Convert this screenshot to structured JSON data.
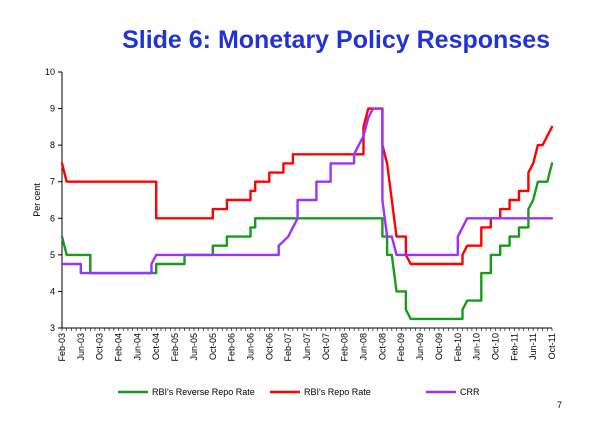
{
  "slide": {
    "title": "Slide 6: Monetary Policy Responses",
    "number": "7"
  },
  "colors": {
    "title": "#2233d6",
    "reverse_repo": "#1a9a1a",
    "repo": "#ff0000",
    "crr": "#9933ff"
  },
  "chart_data": {
    "type": "line",
    "title": "",
    "xlabel": "",
    "ylabel": "Per cent",
    "ylim": [
      3,
      10
    ],
    "yticks": [
      3,
      4,
      5,
      6,
      7,
      8,
      9,
      10
    ],
    "grid": false,
    "legend_position": "bottom",
    "x_start_label": "Feb-03",
    "x_end_label": "Oct-11",
    "xtick_labels": [
      "Feb-03",
      "Jun-03",
      "Oct-03",
      "Feb-04",
      "Jun-04",
      "Oct-04",
      "Feb-05",
      "Jun-05",
      "Oct-05",
      "Feb-06",
      "Jun-06",
      "Oct-06",
      "Feb-07",
      "Jun-07",
      "Oct-07",
      "Feb-08",
      "Jun-08",
      "Oct-08",
      "Feb-09",
      "Jun-09",
      "Oct-09",
      "Feb-10",
      "Jun-10",
      "Oct-10",
      "Feb-11",
      "Jun-11",
      "Oct-11"
    ],
    "series": [
      {
        "name": "RBI's Reverse Repo Rate",
        "color": "#1a9a1a",
        "points": [
          [
            "Feb-03",
            5.5
          ],
          [
            "Mar-03",
            5.0
          ],
          [
            "Jun-03",
            5.0
          ],
          [
            "Aug-03",
            5.0
          ],
          [
            "Aug-03",
            4.5
          ],
          [
            "Oct-04",
            4.5
          ],
          [
            "Oct-04",
            4.75
          ],
          [
            "Apr-05",
            4.75
          ],
          [
            "Apr-05",
            5.0
          ],
          [
            "Oct-05",
            5.0
          ],
          [
            "Oct-05",
            5.25
          ],
          [
            "Jan-06",
            5.25
          ],
          [
            "Jan-06",
            5.5
          ],
          [
            "Jun-06",
            5.5
          ],
          [
            "Jun-06",
            5.75
          ],
          [
            "Jul-06",
            5.75
          ],
          [
            "Jul-06",
            6.0
          ],
          [
            "Oct-08",
            6.0
          ],
          [
            "Oct-08",
            5.5
          ],
          [
            "Nov-08",
            5.5
          ],
          [
            "Nov-08",
            5.0
          ],
          [
            "Dec-08",
            5.0
          ],
          [
            "Jan-09",
            4.0
          ],
          [
            "Mar-09",
            4.0
          ],
          [
            "Mar-09",
            3.5
          ],
          [
            "Apr-09",
            3.25
          ],
          [
            "Mar-10",
            3.25
          ],
          [
            "Mar-10",
            3.5
          ],
          [
            "Apr-10",
            3.75
          ],
          [
            "Jul-10",
            3.75
          ],
          [
            "Jul-10",
            4.0
          ],
          [
            "Jul-10",
            4.5
          ],
          [
            "Sep-10",
            4.5
          ],
          [
            "Sep-10",
            5.0
          ],
          [
            "Nov-10",
            5.0
          ],
          [
            "Nov-10",
            5.25
          ],
          [
            "Jan-11",
            5.25
          ],
          [
            "Jan-11",
            5.5
          ],
          [
            "Mar-11",
            5.5
          ],
          [
            "Mar-11",
            5.75
          ],
          [
            "May-11",
            5.75
          ],
          [
            "May-11",
            6.25
          ],
          [
            "Jun-11",
            6.5
          ],
          [
            "Jul-11",
            7.0
          ],
          [
            "Sep-11",
            7.0
          ],
          [
            "Oct-11",
            7.5
          ]
        ]
      },
      {
        "name": "RBI's Repo Rate",
        "color": "#ff0000",
        "points": [
          [
            "Feb-03",
            7.5
          ],
          [
            "Mar-03",
            7.0
          ],
          [
            "Mar-04",
            7.0
          ],
          [
            "Oct-04",
            7.0
          ],
          [
            "Oct-04",
            6.0
          ],
          [
            "Oct-05",
            6.0
          ],
          [
            "Oct-05",
            6.25
          ],
          [
            "Jan-06",
            6.25
          ],
          [
            "Jan-06",
            6.5
          ],
          [
            "Jun-06",
            6.5
          ],
          [
            "Jun-06",
            6.75
          ],
          [
            "Jul-06",
            6.75
          ],
          [
            "Jul-06",
            7.0
          ],
          [
            "Oct-06",
            7.0
          ],
          [
            "Oct-06",
            7.25
          ],
          [
            "Jan-07",
            7.25
          ],
          [
            "Jan-07",
            7.5
          ],
          [
            "Mar-07",
            7.5
          ],
          [
            "Mar-07",
            7.75
          ],
          [
            "Jun-08",
            7.75
          ],
          [
            "Jun-08",
            8.0
          ],
          [
            "Jun-08",
            8.5
          ],
          [
            "Jul-08",
            9.0
          ],
          [
            "Oct-08",
            9.0
          ],
          [
            "Oct-08",
            8.0
          ],
          [
            "Nov-08",
            7.5
          ],
          [
            "Dec-08",
            6.5
          ],
          [
            "Jan-09",
            5.5
          ],
          [
            "Mar-09",
            5.5
          ],
          [
            "Mar-09",
            5.0
          ],
          [
            "Apr-09",
            4.75
          ],
          [
            "Mar-10",
            4.75
          ],
          [
            "Mar-10",
            5.0
          ],
          [
            "Apr-10",
            5.25
          ],
          [
            "Jul-10",
            5.25
          ],
          [
            "Jul-10",
            5.75
          ],
          [
            "Sep-10",
            5.75
          ],
          [
            "Sep-10",
            6.0
          ],
          [
            "Nov-10",
            6.0
          ],
          [
            "Nov-10",
            6.25
          ],
          [
            "Jan-11",
            6.25
          ],
          [
            "Jan-11",
            6.5
          ],
          [
            "Mar-11",
            6.5
          ],
          [
            "Mar-11",
            6.75
          ],
          [
            "May-11",
            6.75
          ],
          [
            "May-11",
            7.25
          ],
          [
            "Jun-11",
            7.5
          ],
          [
            "Jul-11",
            8.0
          ],
          [
            "Aug-11",
            8.0
          ],
          [
            "Sep-11",
            8.25
          ],
          [
            "Oct-11",
            8.5
          ]
        ]
      },
      {
        "name": "CRR",
        "color": "#9933ff",
        "points": [
          [
            "Feb-03",
            4.75
          ],
          [
            "Jun-03",
            4.75
          ],
          [
            "Jun-03",
            4.5
          ],
          [
            "Sep-04",
            4.5
          ],
          [
            "Sep-04",
            4.75
          ],
          [
            "Oct-04",
            5.0
          ],
          [
            "Dec-06",
            5.0
          ],
          [
            "Dec-06",
            5.25
          ],
          [
            "Feb-07",
            5.5
          ],
          [
            "Apr-07",
            6.0
          ],
          [
            "Apr-07",
            6.5
          ],
          [
            "Aug-07",
            6.5
          ],
          [
            "Aug-07",
            7.0
          ],
          [
            "Nov-07",
            7.0
          ],
          [
            "Nov-07",
            7.5
          ],
          [
            "Apr-08",
            7.5
          ],
          [
            "Apr-08",
            7.75
          ],
          [
            "May-08",
            8.0
          ],
          [
            "Jun-08",
            8.25
          ],
          [
            "Jul-08",
            8.75
          ],
          [
            "Aug-08",
            9.0
          ],
          [
            "Oct-08",
            9.0
          ],
          [
            "Oct-08",
            6.5
          ],
          [
            "Nov-08",
            5.5
          ],
          [
            "Dec-08",
            5.5
          ],
          [
            "Jan-09",
            5.0
          ],
          [
            "Feb-10",
            5.0
          ],
          [
            "Feb-10",
            5.5
          ],
          [
            "Mar-10",
            5.75
          ],
          [
            "Apr-10",
            6.0
          ],
          [
            "Oct-11",
            6.0
          ]
        ]
      }
    ]
  }
}
